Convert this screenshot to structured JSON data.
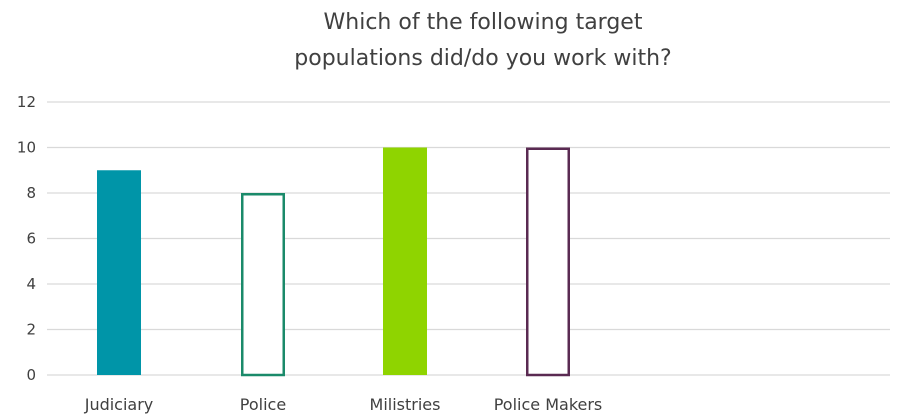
{
  "chart_data": {
    "type": "bar",
    "title_lines": [
      "Which of the following target",
      "populations did/do you work with?"
    ],
    "categories": [
      "Judiciary",
      "Police",
      "Milistries",
      "Police Makers"
    ],
    "values": [
      9,
      8,
      10,
      10
    ],
    "ylim": [
      0,
      12
    ],
    "yticks": [
      "0",
      "2",
      "4",
      "6",
      "8",
      "10",
      "12"
    ],
    "grid": true,
    "legend": "none",
    "bar_styles": [
      {
        "fill": "#0095a8",
        "stroke": "#0095a8"
      },
      {
        "fill": "#ffffff",
        "stroke": "#1a8a6a"
      },
      {
        "fill": "#8fd400",
        "stroke": "#8fd400"
      },
      {
        "fill": "#ffffff",
        "stroke": "#5a2a52"
      }
    ]
  }
}
